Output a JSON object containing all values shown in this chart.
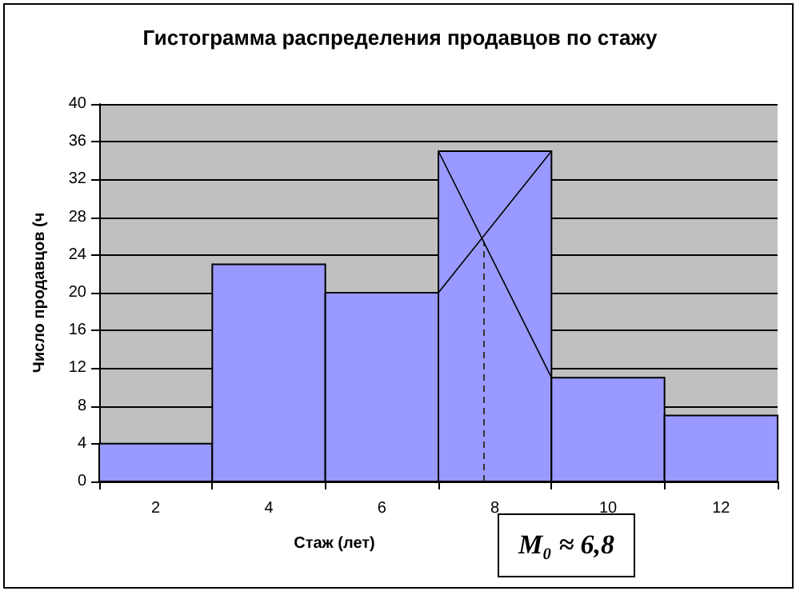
{
  "chart_data": {
    "type": "histogram",
    "title": "Гистограмма распределения продавцов по стажу",
    "xlabel": "Стаж (лет)",
    "ylabel": "Число продавцов (ч",
    "bins": [
      1,
      3,
      5,
      7,
      9,
      11,
      13
    ],
    "values": [
      4,
      23,
      20,
      35,
      11,
      7
    ],
    "color": "#9999ff",
    "xlim": [
      1,
      13
    ],
    "xticks": [
      {
        "value": 1,
        "label": null
      },
      2,
      {
        "value": 3,
        "label": null
      },
      4,
      {
        "value": 5,
        "label": null
      },
      6,
      {
        "value": 7,
        "label": null
      },
      8,
      {
        "value": 9,
        "label": null
      },
      10,
      {
        "value": 11,
        "label": null
      },
      12,
      {
        "value": 13,
        "label": null
      }
    ],
    "ylim": [
      0,
      40
    ],
    "yticks": [
      0,
      4,
      8,
      12,
      16,
      20,
      24,
      28,
      32,
      36,
      40
    ],
    "grid": "y",
    "ref_lines": [
      {
        "axis": "x",
        "value": 7.8,
        "line_style": "dashed",
        "color": "#333333"
      }
    ],
    "annotations": [
      "M₀ ≈ 6,8"
    ]
  }
}
